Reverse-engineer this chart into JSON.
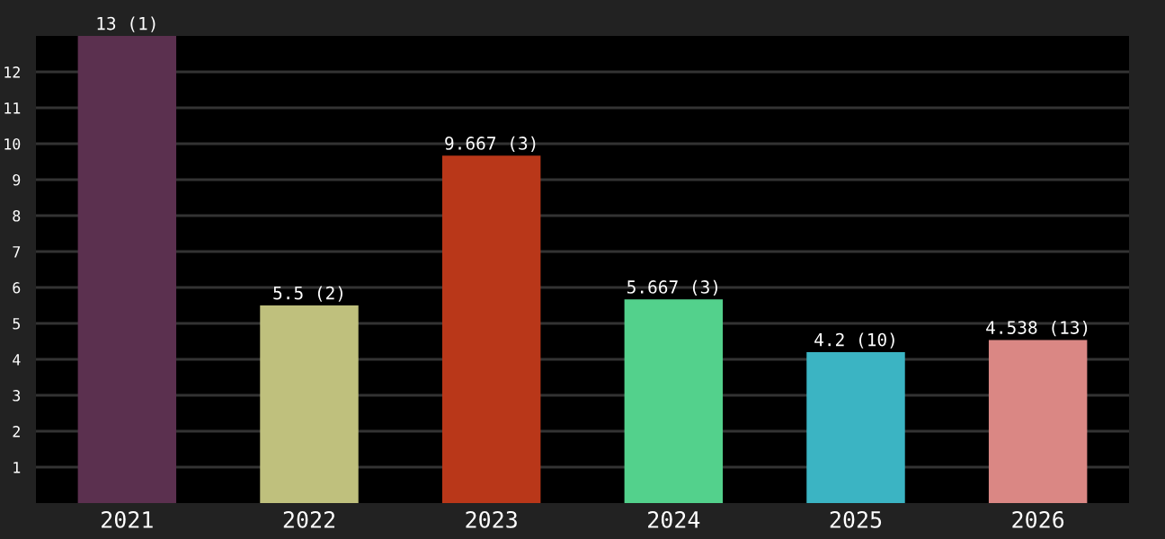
{
  "chart_data": {
    "type": "bar",
    "categories": [
      "2021",
      "2022",
      "2023",
      "2024",
      "2025",
      "2026"
    ],
    "values": [
      13,
      5.5,
      9.667,
      5.667,
      4.2,
      4.538
    ],
    "colors": [
      "#5b304f",
      "#bfc07d",
      "#b93719",
      "#53d18c",
      "#3bb4c3",
      "#da8784"
    ],
    "value_labels": [
      "13 (1)",
      "5.5 (2)",
      "9.667 (3)",
      "5.667 (3)",
      "4.2 (10)",
      "4.538 (13)"
    ],
    "ylim": [
      0,
      13
    ],
    "yticks": [
      1,
      2,
      3,
      4,
      5,
      6,
      7,
      8,
      9,
      10,
      11,
      12
    ],
    "grid": "y",
    "legend": false
  }
}
